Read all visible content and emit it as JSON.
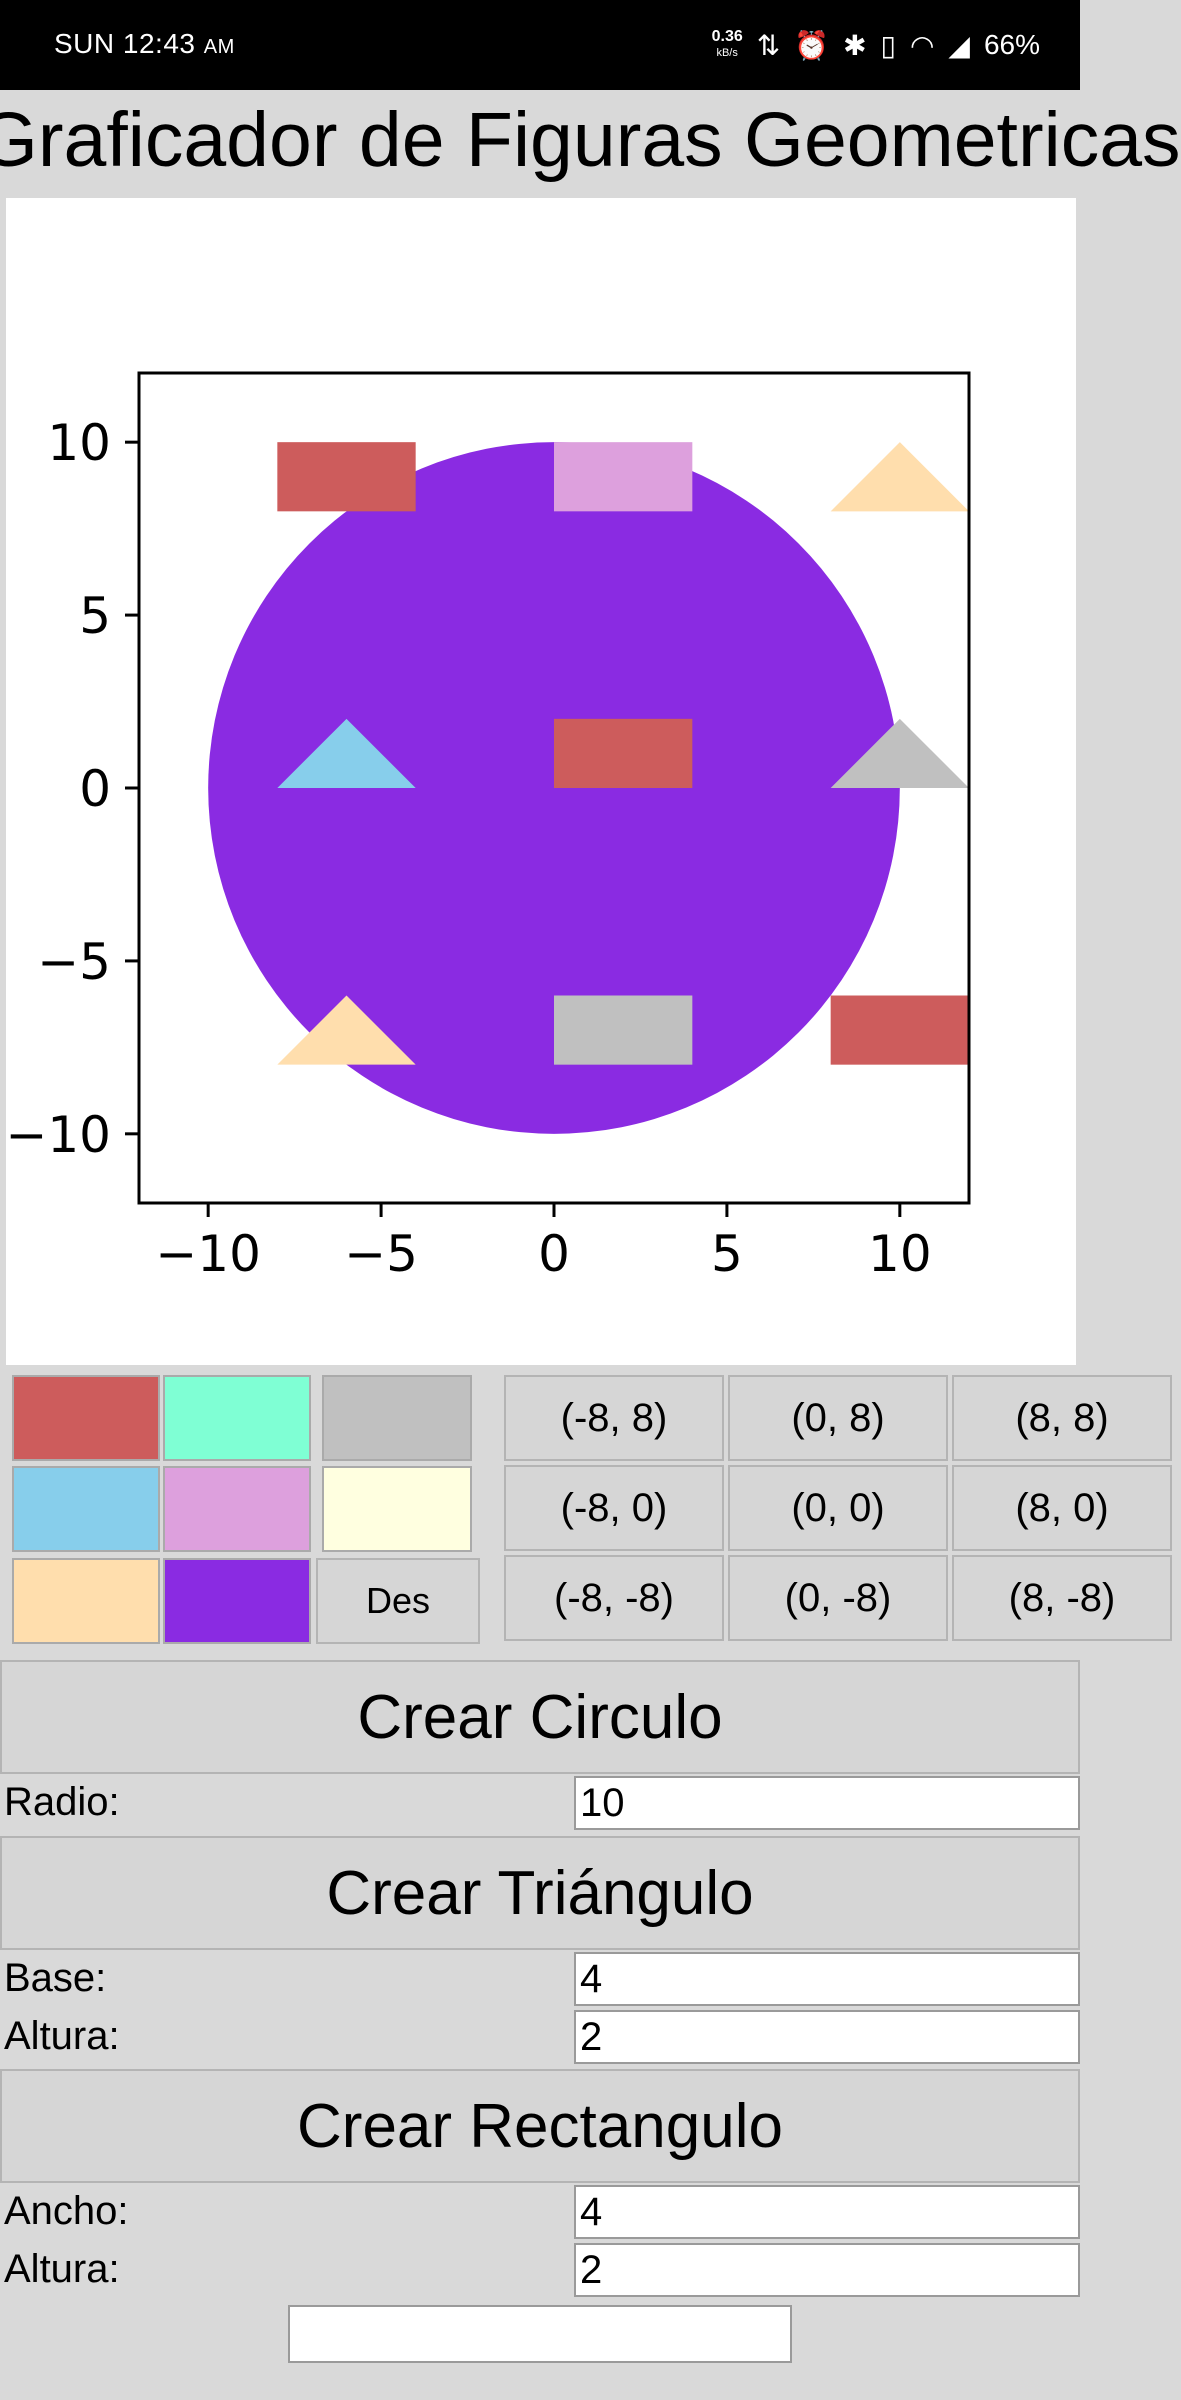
{
  "status_bar": {
    "time": "SUN 12:43",
    "ampm": "AM",
    "net_speed": "0.36",
    "net_unit": "kB/s",
    "battery": "66%"
  },
  "title": "Graficador de Figuras Geometricas",
  "colors": {
    "swatches": [
      {
        "name": "indianred",
        "hex": "#cd5c5c"
      },
      {
        "name": "aquamarine",
        "hex": "#7fffd4"
      },
      {
        "name": "silver",
        "hex": "#c0c0c0"
      },
      {
        "name": "skyblue",
        "hex": "#87ceeb"
      },
      {
        "name": "plum",
        "hex": "#dda0dd"
      },
      {
        "name": "lightyellow",
        "hex": "#ffffe0"
      },
      {
        "name": "navajowhite",
        "hex": "#ffdead"
      },
      {
        "name": "blueviolet",
        "hex": "#8a2be2"
      }
    ],
    "deselect_label": "Des"
  },
  "positions": [
    [
      "(-8, 8)",
      "(0, 8)",
      "(8, 8)"
    ],
    [
      "(-8, 0)",
      "(0, 0)",
      "(8, 0)"
    ],
    [
      "(-8, -8)",
      "(0, -8)",
      "(8, -8)"
    ]
  ],
  "circle_form": {
    "button": "Crear Circulo",
    "radius_label": "Radio:",
    "radius_value": "10"
  },
  "triangle_form": {
    "button": "Crear Triángulo",
    "base_label": "Base:",
    "base_value": "4",
    "height_label": "Altura:",
    "height_value": "2"
  },
  "rectangle_form": {
    "button": "Crear Rectangulo",
    "width_label": "Ancho:",
    "width_value": "4",
    "height_label": "Altura:",
    "height_value": "2"
  },
  "bottom_field_value": "",
  "chart_data": {
    "type": "scatter",
    "xlim": [
      -12,
      12
    ],
    "ylim": [
      -12,
      12
    ],
    "xticks": [
      -10,
      -5,
      0,
      5,
      10
    ],
    "yticks": [
      -10,
      -5,
      0,
      5,
      10
    ],
    "xtick_labels": [
      "−10",
      "−5",
      "0",
      "5",
      "10"
    ],
    "ytick_labels": [
      "−10",
      "−5",
      "0",
      "5",
      "10"
    ],
    "grid": false,
    "shapes": [
      {
        "kind": "circle",
        "cx": 0,
        "cy": 0,
        "r": 10,
        "color": "#8a2be2"
      },
      {
        "kind": "rect",
        "x": -8,
        "y": 8,
        "w": 4,
        "h": 2,
        "color": "#cd5c5c"
      },
      {
        "kind": "rect",
        "x": 0,
        "y": 8,
        "w": 4,
        "h": 2,
        "color": "#dda0dd"
      },
      {
        "kind": "triangle",
        "x": 8,
        "y": 8,
        "base": 4,
        "height": 2,
        "color": "#ffdead"
      },
      {
        "kind": "triangle",
        "x": -8,
        "y": 0,
        "base": 4,
        "height": 2,
        "color": "#87ceeb"
      },
      {
        "kind": "rect",
        "x": 0,
        "y": 0,
        "w": 4,
        "h": 2,
        "color": "#cd5c5c"
      },
      {
        "kind": "triangle",
        "x": 8,
        "y": 0,
        "base": 4,
        "height": 2,
        "color": "#c0c0c0"
      },
      {
        "kind": "triangle",
        "x": -8,
        "y": -8,
        "base": 4,
        "height": 2,
        "color": "#ffdead"
      },
      {
        "kind": "rect",
        "x": 0,
        "y": -8,
        "w": 4,
        "h": 2,
        "color": "#c0c0c0"
      },
      {
        "kind": "rect",
        "x": 8,
        "y": -8,
        "w": 4,
        "h": 2,
        "color": "#cd5c5c"
      }
    ]
  }
}
